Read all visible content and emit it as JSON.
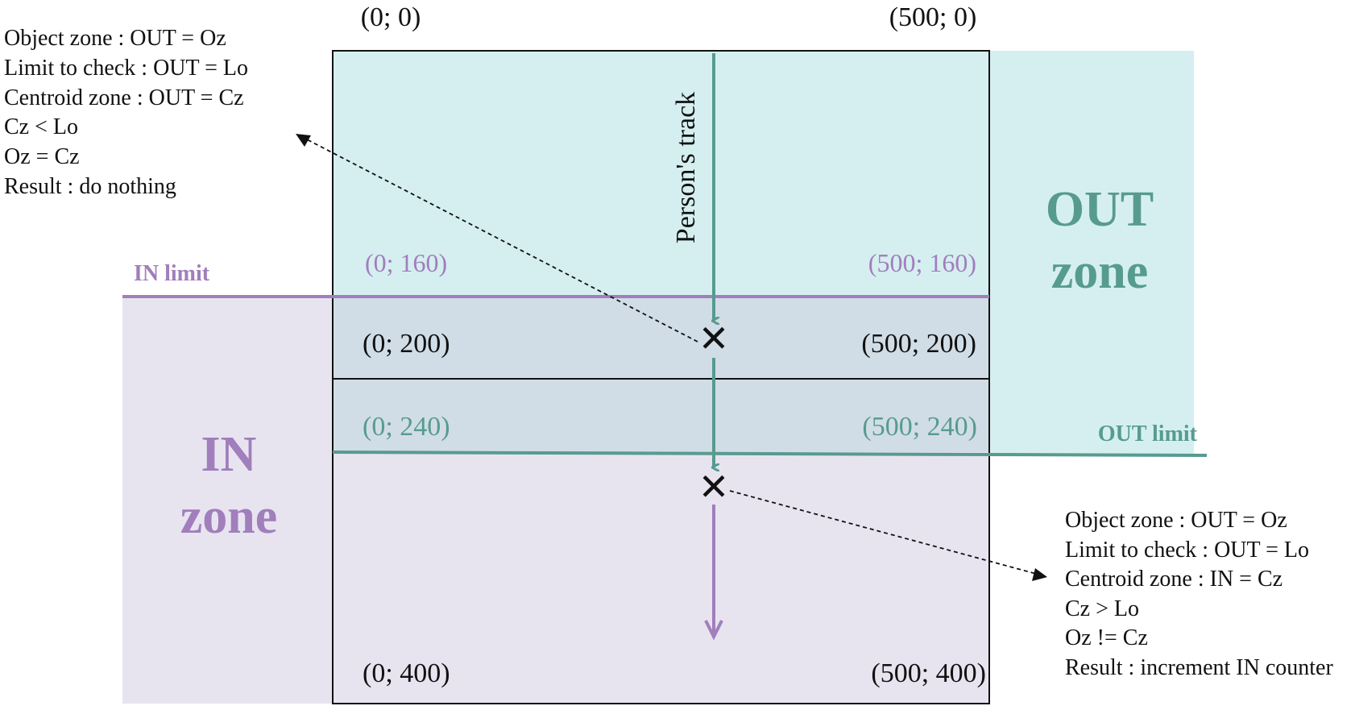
{
  "colors": {
    "out_zone_fill": "#d5eff0",
    "in_zone_fill": "#e7e4f0",
    "overlap_fill": "#d1dde6",
    "teal": "#579b8f",
    "purple": "#a17ebc",
    "ink": "#111111"
  },
  "corners": {
    "top_left": "(0; 0)",
    "top_right": "(500; 0)",
    "in_left": "(0; 160)",
    "in_right": "(500; 160)",
    "mid_left": "(0; 200)",
    "mid_right": "(500; 200)",
    "out_left": "(0; 240)",
    "out_right": "(500; 240)",
    "bottom_left": "(0; 400)",
    "bottom_right": "(500; 400)"
  },
  "labels": {
    "in_limit": "IN limit",
    "out_limit": "OUT limit",
    "out_zone_line1": "OUT",
    "out_zone_line2": "zone",
    "in_zone_line1": "IN",
    "in_zone_line2": "zone",
    "track": "Person's track"
  },
  "notes": {
    "upper": [
      "Object zone : OUT = Oz",
      "Limit to check : OUT = Lo",
      "Centroid zone : OUT = Cz",
      "Cz < Lo",
      "Oz = Cz",
      "Result : do nothing"
    ],
    "lower": [
      "Object zone : OUT = Oz",
      "Limit to check : OUT = Lo",
      "Centroid zone : IN = Cz",
      "Cz > Lo",
      "Oz != Cz",
      "Result : increment IN counter"
    ]
  },
  "markers": {
    "glyph": "✕"
  }
}
